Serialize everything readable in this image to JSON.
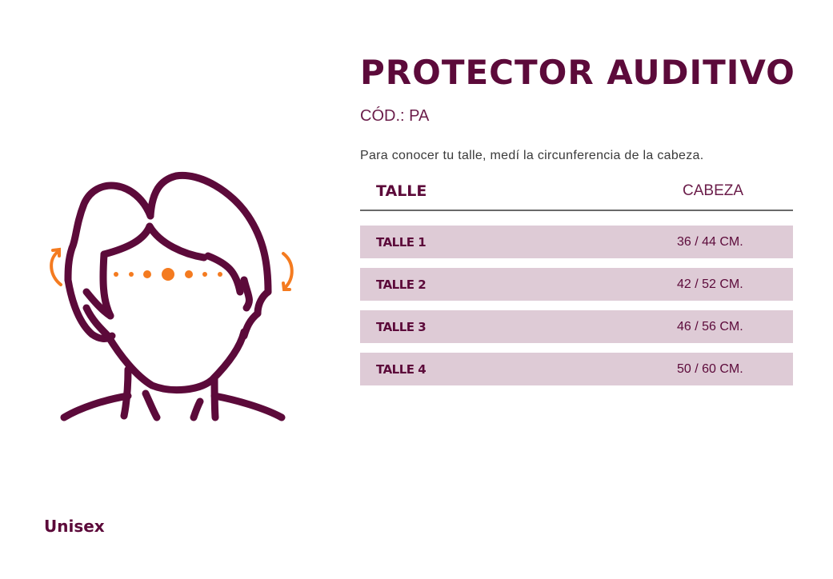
{
  "product": {
    "title": "PROTECTOR AUDITIVO",
    "code": "CÓD.: PA",
    "description": "Para conocer tu talle, medí la circunferencia de la cabeza."
  },
  "table": {
    "headers": {
      "size": "TALLE",
      "head": "CABEZA"
    },
    "rows": [
      {
        "size": "TALLE 1",
        "head": "36 / 44 CM."
      },
      {
        "size": "TALLE 2",
        "head": "42 / 52 CM."
      },
      {
        "size": "TALLE 3",
        "head": "46 / 56 CM."
      },
      {
        "size": "TALLE 4",
        "head": "50 / 60 CM."
      }
    ]
  },
  "footer": {
    "gender": "Unisex"
  },
  "illustration": {
    "icon": "head-measurement-icon"
  },
  "colors": {
    "brand": "#5c0a3a",
    "row_bg": "#decbd6",
    "accent": "#f47b20"
  }
}
